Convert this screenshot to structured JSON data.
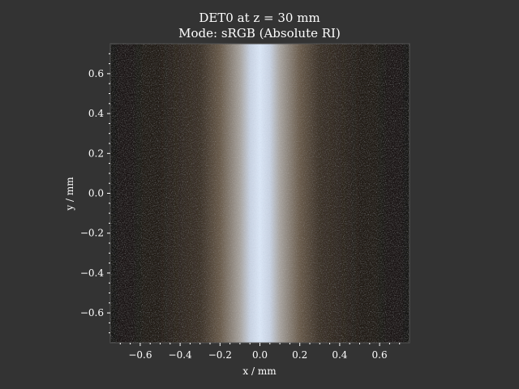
{
  "chart_data": {
    "type": "heatmap",
    "title": "DET0 at z = 30 mm",
    "subtitle": "Mode: sRGB (Absolute RI)",
    "xlabel": "x / mm",
    "ylabel": "y / mm",
    "xlim": [
      -0.75,
      0.75
    ],
    "ylim": [
      -0.75,
      0.75
    ],
    "x_ticks": [
      -0.6,
      -0.4,
      -0.2,
      0.0,
      0.2,
      0.4,
      0.6
    ],
    "y_ticks": [
      -0.6,
      -0.4,
      -0.2,
      0.0,
      0.2,
      0.4,
      0.6
    ],
    "x_tick_labels": [
      "−0.6",
      "−0.4",
      "−0.2",
      "0.0",
      "0.2",
      "0.4",
      "0.6"
    ],
    "y_tick_labels": [
      "−0.6",
      "−0.4",
      "−0.2",
      "0.0",
      "0.2",
      "0.4",
      "0.6"
    ],
    "minor_tick_step": 0.05,
    "profile": {
      "description": "vertical bright band, intensity varies with x only",
      "x": [
        -0.75,
        -0.5,
        -0.3,
        -0.2,
        -0.1,
        -0.05,
        0.0,
        0.05,
        0.1,
        0.2,
        0.3,
        0.5,
        0.75
      ],
      "colors": [
        "#181512",
        "#241e18",
        "#3c3228",
        "#6a5c4c",
        "#a8a4a0",
        "#c8d2e2",
        "#dae6f6",
        "#c8d2e2",
        "#a8a4a0",
        "#6a5c4c",
        "#3c3228",
        "#241e18",
        "#181512"
      ]
    },
    "grid": false
  },
  "colors": {
    "background": "#333333",
    "text": "#ffffff"
  }
}
